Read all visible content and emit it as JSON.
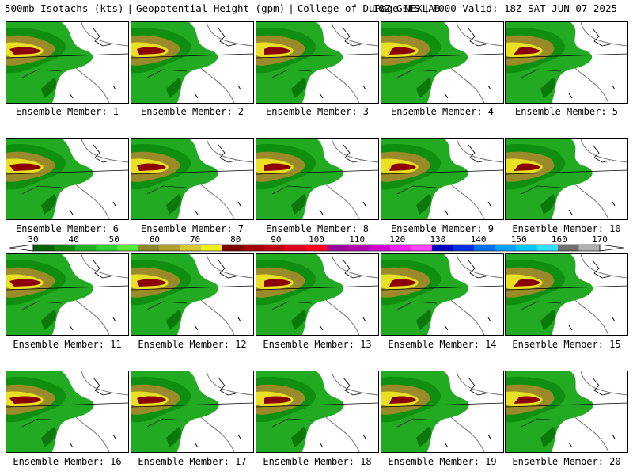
{
  "header": {
    "field": "500mb Isotachs (kts)",
    "height": "Geopotential Height (gpm)",
    "source": "College of DuPage NEXLAB",
    "model": "18Z GEFS",
    "valid": "F000 Valid: 18Z SAT JUN 07 2025"
  },
  "members": [
    {
      "label": "Ensemble Member: 1"
    },
    {
      "label": "Ensemble Member: 2"
    },
    {
      "label": "Ensemble Member: 3"
    },
    {
      "label": "Ensemble Member: 4"
    },
    {
      "label": "Ensemble Member: 5"
    },
    {
      "label": "Ensemble Member: 6"
    },
    {
      "label": "Ensemble Member: 7"
    },
    {
      "label": "Ensemble Member: 8"
    },
    {
      "label": "Ensemble Member: 9"
    },
    {
      "label": "Ensemble Member: 10"
    },
    {
      "label": "Ensemble Member: 11"
    },
    {
      "label": "Ensemble Member: 12"
    },
    {
      "label": "Ensemble Member: 13"
    },
    {
      "label": "Ensemble Member: 14"
    },
    {
      "label": "Ensemble Member: 15"
    },
    {
      "label": "Ensemble Member: 16"
    },
    {
      "label": "Ensemble Member: 17"
    },
    {
      "label": "Ensemble Member: 18"
    },
    {
      "label": "Ensemble Member: 19"
    },
    {
      "label": "Ensemble Member: 20"
    }
  ],
  "colorbar": {
    "ticks": [
      "30",
      "40",
      "50",
      "60",
      "70",
      "80",
      "90",
      "100",
      "110",
      "120",
      "130",
      "140",
      "150",
      "160",
      "170"
    ],
    "colors": [
      "#006400",
      "#0a8a0a",
      "#20b020",
      "#30d030",
      "#56e83a",
      "#8a8a2a",
      "#b0a030",
      "#d8c830",
      "#f0f020",
      "#800000",
      "#a00000",
      "#c00010",
      "#e00020",
      "#ff0020",
      "#9a009a",
      "#b000b0",
      "#d000d0",
      "#f020f0",
      "#ff40ff",
      "#0000c0",
      "#0030e0",
      "#0070f0",
      "#00a0ff",
      "#00c8ff",
      "#30e0ff",
      "#707070",
      "#b0b0b0"
    ],
    "wind_colors": {
      "light": "#22aa22",
      "medium": "#0f8f0f",
      "dark": "#006400",
      "olive": "#9a8a2a",
      "yellow": "#e8e020",
      "jet": "#8b0000"
    }
  }
}
